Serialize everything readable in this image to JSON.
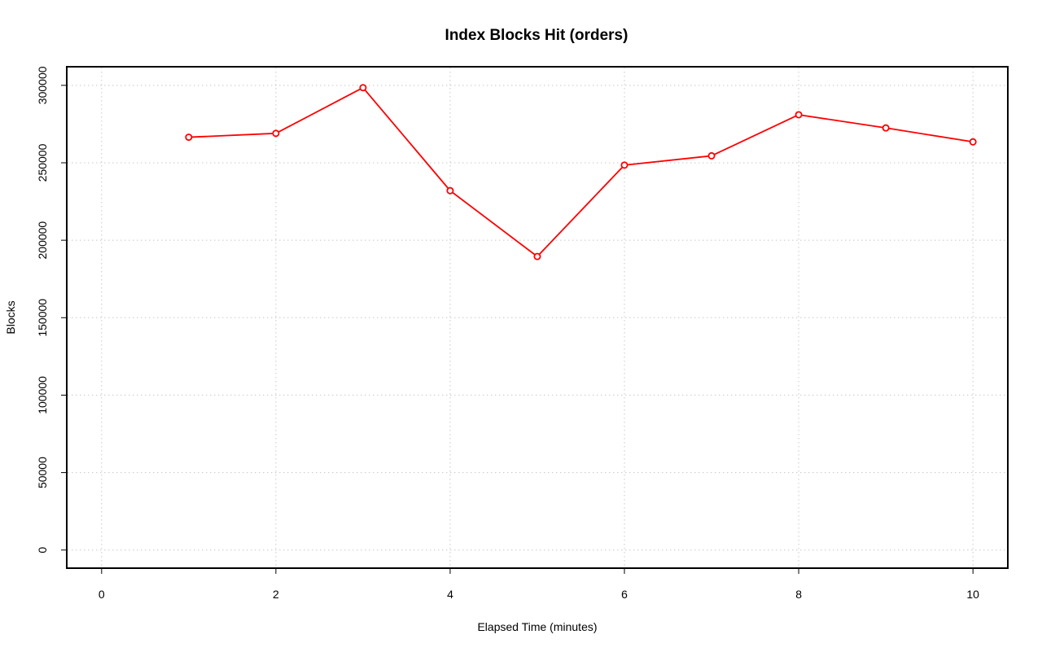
{
  "chart_data": {
    "type": "line",
    "title": "Index Blocks Hit (orders)",
    "xlabel": "Elapsed Time (minutes)",
    "ylabel": "Blocks",
    "xlim": [
      -0.4,
      10.4
    ],
    "ylim": [
      -11700,
      312000
    ],
    "x_ticks": [
      0,
      2,
      4,
      6,
      8,
      10
    ],
    "y_ticks": [
      0,
      50000,
      100000,
      150000,
      200000,
      250000,
      300000
    ],
    "grid": true,
    "series": [
      {
        "color": "#ff0000",
        "marker": "circle",
        "x": [
          1,
          2,
          3,
          4,
          5,
          6,
          7,
          8,
          9,
          10
        ],
        "y": [
          266500,
          269000,
          298500,
          232000,
          189500,
          248500,
          254500,
          281000,
          272500,
          263500
        ]
      }
    ]
  }
}
